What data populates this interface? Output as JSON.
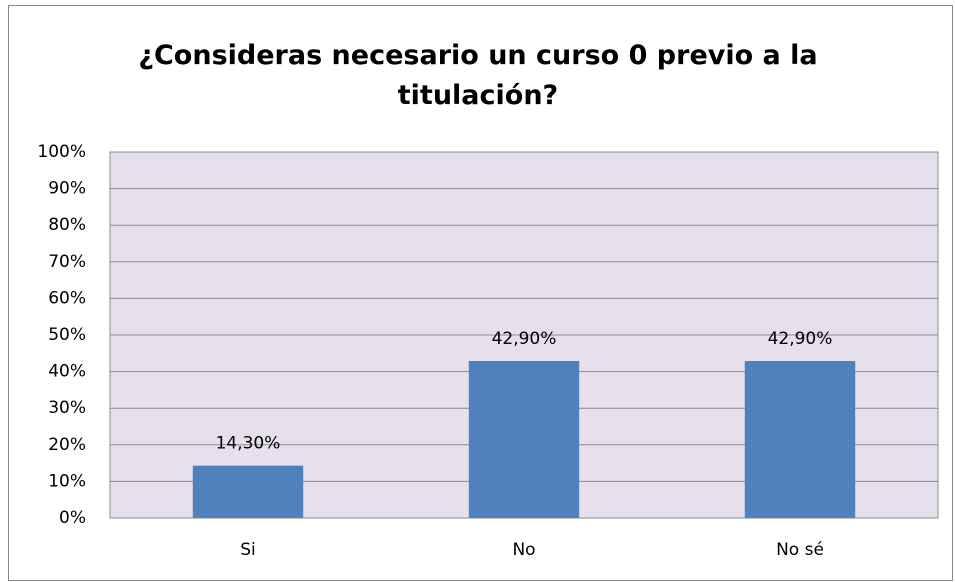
{
  "chart_data": {
    "type": "bar",
    "title": "¿Consideras necesario un curso 0 previo a la titulación?",
    "categories": [
      "Si",
      "No",
      "No sé"
    ],
    "values": [
      14.3,
      42.9,
      42.9
    ],
    "value_labels": [
      "14,30%",
      "42,90%",
      "42,90%"
    ],
    "color": "#4f81bd",
    "ylim": [
      0,
      100
    ],
    "yticks": [
      {
        "value": 0,
        "label": "0%"
      },
      {
        "value": 10,
        "label": "10%"
      },
      {
        "value": 20,
        "label": "20%"
      },
      {
        "value": 30,
        "label": "30%"
      },
      {
        "value": 40,
        "label": "40%"
      },
      {
        "value": 50,
        "label": "50%"
      },
      {
        "value": 60,
        "label": "60%"
      },
      {
        "value": 70,
        "label": "70%"
      },
      {
        "value": 80,
        "label": "80%"
      },
      {
        "value": 90,
        "label": "90%"
      },
      {
        "value": 100,
        "label": "100%"
      }
    ],
    "grid": true
  }
}
